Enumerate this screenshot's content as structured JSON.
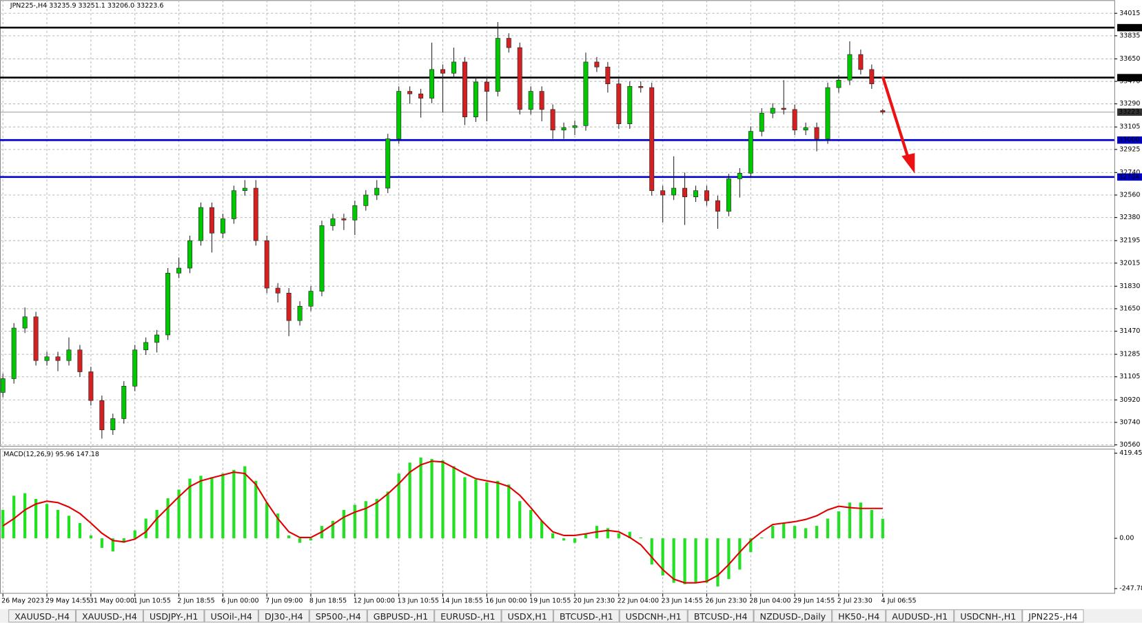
{
  "chart_data": [
    {
      "type": "candlestick",
      "title": "JPN225-,H4  33235.9 33251.1 33206.0 33223.6",
      "categories": [
        "26 May 2023",
        null,
        null,
        null,
        "29 May 14:55",
        null,
        null,
        null,
        "31 May 00:00",
        null,
        null,
        null,
        "1 Jun 10:55",
        null,
        null,
        null,
        "2 Jun 18:55",
        null,
        null,
        null,
        "6 Jun 00:00",
        null,
        null,
        null,
        "7 Jun 09:00",
        null,
        null,
        null,
        "8 Jun 18:55",
        null,
        null,
        null,
        "12 Jun 00:00",
        null,
        null,
        null,
        "13 Jun 10:55",
        null,
        null,
        null,
        "14 Jun 18:55",
        null,
        null,
        null,
        "16 Jun 00:00",
        null,
        null,
        null,
        "19 Jun 10:55",
        null,
        null,
        null,
        "20 Jun 23:30",
        null,
        null,
        null,
        "22 Jun 04:00",
        null,
        null,
        null,
        "23 Jun 14:55",
        null,
        null,
        null,
        "26 Jun 23:30",
        null,
        null,
        null,
        "28 Jun 04:00",
        null,
        null,
        null,
        "29 Jun 14:55",
        null,
        null,
        null,
        "2 Jul 23:30",
        null,
        null,
        null,
        "4 Jul 06:55"
      ],
      "open": [
        30980,
        31090,
        31495,
        31585,
        31235,
        31265,
        31235,
        31320,
        31145,
        30915,
        30680,
        30770,
        31030,
        31320,
        31380,
        31440,
        31935,
        31975,
        32195,
        32460,
        32255,
        32370,
        32595,
        32615,
        32195,
        31815,
        31775,
        31555,
        31670,
        31790,
        32315,
        32370,
        32360,
        32475,
        32560,
        32615,
        33010,
        33390,
        33370,
        33335,
        33565,
        33535,
        33625,
        33185,
        33465,
        33390,
        33815,
        33740,
        33245,
        33390,
        33245,
        33080,
        33100,
        33115,
        33625,
        33585,
        33450,
        33130,
        33430,
        33420,
        32595,
        32560,
        32615,
        32545,
        32595,
        32515,
        32430,
        32690,
        32735,
        33070,
        33215,
        33255,
        33245,
        33080,
        33100,
        33010,
        33420,
        33480,
        33685,
        33565,
        33235.9
      ],
      "high": [
        31130,
        31535,
        31660,
        31625,
        31305,
        31305,
        31420,
        31360,
        31185,
        30955,
        30810,
        31070,
        31360,
        31420,
        31480,
        31975,
        32060,
        32235,
        32500,
        32500,
        32410,
        32635,
        32680,
        32680,
        32235,
        31855,
        31815,
        31710,
        31830,
        32355,
        32410,
        32410,
        32515,
        32600,
        32680,
        33050,
        33430,
        33430,
        33410,
        33780,
        33605,
        33740,
        33665,
        33505,
        33505,
        33945,
        33855,
        33780,
        33430,
        33430,
        33285,
        33140,
        33155,
        33700,
        33665,
        33625,
        33490,
        33470,
        33470,
        33460,
        32635,
        32870,
        32740,
        32635,
        32635,
        32555,
        32730,
        32775,
        33110,
        33255,
        33295,
        33480,
        33285,
        33140,
        33140,
        33460,
        33520,
        33790,
        33725,
        33605,
        33251.1
      ],
      "low": [
        30940,
        31050,
        31455,
        31195,
        31195,
        31150,
        31195,
        31105,
        30875,
        30610,
        30640,
        30730,
        30990,
        31280,
        31300,
        31400,
        31895,
        31935,
        32155,
        32100,
        32215,
        32330,
        32555,
        32155,
        31775,
        31700,
        31430,
        31515,
        31630,
        31750,
        32275,
        32280,
        32240,
        32435,
        32520,
        32575,
        32970,
        33290,
        33180,
        33295,
        33220,
        33495,
        33120,
        33145,
        33150,
        33350,
        33700,
        33205,
        33205,
        33150,
        33010,
        33010,
        33040,
        33075,
        33545,
        33380,
        33090,
        33090,
        33380,
        32555,
        32340,
        32520,
        32320,
        32505,
        32475,
        32290,
        32390,
        32540,
        32695,
        33030,
        33175,
        33205,
        33040,
        33040,
        32910,
        32970,
        33380,
        33440,
        33525,
        33410,
        33206.0
      ],
      "close": [
        31090,
        31495,
        31585,
        31235,
        31265,
        31235,
        31320,
        31145,
        30915,
        30680,
        30770,
        31030,
        31320,
        31380,
        31440,
        31935,
        31975,
        32195,
        32460,
        32255,
        32370,
        32595,
        32615,
        32195,
        31815,
        31775,
        31555,
        31670,
        31790,
        32315,
        32370,
        32360,
        32475,
        32560,
        32615,
        33010,
        33390,
        33370,
        33335,
        33565,
        33535,
        33625,
        33185,
        33465,
        33390,
        33815,
        33740,
        33245,
        33390,
        33245,
        33080,
        33100,
        33115,
        33625,
        33585,
        33450,
        33130,
        33430,
        33420,
        32595,
        32560,
        32615,
        32545,
        32595,
        32515,
        32430,
        32690,
        32735,
        33070,
        33215,
        33255,
        33245,
        33080,
        33100,
        33010,
        33420,
        33480,
        33685,
        33565,
        33450,
        33223.6
      ],
      "up_color": "#00c800",
      "down_color": "#d42020",
      "ylim": [
        30552,
        34120
      ],
      "yticks": [
        34015,
        33835,
        33650,
        33470,
        33290,
        33105,
        32925,
        32740,
        32560,
        32380,
        32195,
        32015,
        31830,
        31650,
        31470,
        31285,
        31105,
        30920,
        30740,
        30560
      ],
      "levels": [
        {
          "value": 33900,
          "label": "33900.0",
          "color": "#000000"
        },
        {
          "value": 33500,
          "label": "33500.0",
          "color": "#000000"
        },
        {
          "value": 33000,
          "label": "33000.0",
          "color": "#0000c8"
        },
        {
          "value": 32704.4,
          "label": "32704.4",
          "color": "#0000c8"
        }
      ],
      "grid": true
    },
    {
      "type": "macd",
      "title": "MACD(12,26,9) 95.96 147.18",
      "histogram": [
        140,
        210,
        222,
        194,
        169,
        140,
        111,
        75,
        14,
        -47,
        -65,
        -22,
        39,
        97,
        140,
        197,
        240,
        294,
        308,
        301,
        319,
        337,
        355,
        283,
        176,
        122,
        14,
        -22,
        -11,
        61,
        86,
        140,
        165,
        183,
        194,
        230,
        319,
        373,
        398,
        391,
        384,
        355,
        301,
        290,
        276,
        283,
        265,
        183,
        140,
        86,
        25,
        -11,
        -22,
        25,
        61,
        50,
        25,
        32,
        4,
        -129,
        -183,
        -219,
        -226,
        -219,
        -219,
        -237,
        -201,
        -154,
        -68,
        4,
        61,
        75,
        61,
        50,
        61,
        97,
        133,
        176,
        176,
        140,
        95.96
      ],
      "signal": [
        61,
        97,
        140,
        169,
        183,
        176,
        154,
        122,
        75,
        25,
        -11,
        -18,
        -4,
        32,
        97,
        151,
        205,
        255,
        283,
        298,
        312,
        326,
        319,
        265,
        176,
        97,
        32,
        4,
        4,
        32,
        68,
        104,
        129,
        147,
        176,
        219,
        269,
        326,
        362,
        380,
        376,
        348,
        319,
        294,
        283,
        273,
        255,
        212,
        151,
        86,
        32,
        14,
        14,
        22,
        32,
        39,
        32,
        4,
        -32,
        -93,
        -154,
        -201,
        -219,
        -219,
        -212,
        -183,
        -129,
        -68,
        -11,
        32,
        68,
        75,
        82,
        93,
        111,
        140,
        158,
        151,
        147,
        147,
        147.18
      ],
      "histogram_color": "#22e022",
      "signal_color": "#e00000",
      "ylim": [
        -247.78,
        419.45
      ],
      "yticks": [
        419.45,
        {
          "value": 0,
          "label": "0.00"
        },
        -247.78
      ]
    }
  ],
  "tabs": [
    "XAUUSD-,H4",
    "XAUUSD-,H4",
    "USDJPY-,H1",
    "USOil-,H4",
    "DJ30-,H4",
    "SP500-,H4",
    "GBPUSD-,H1",
    "EURUSD-,H1",
    "USDX,H1",
    "BTCUSD-,H1",
    "USDCNH-,H1",
    "BTCUSD-,H4",
    "NZDUSD-,Daily",
    "HK50-,H4",
    "AUDUSD-,H1",
    "USDCNH-,H1",
    "JPN225-,H4"
  ],
  "active_tab": 16
}
